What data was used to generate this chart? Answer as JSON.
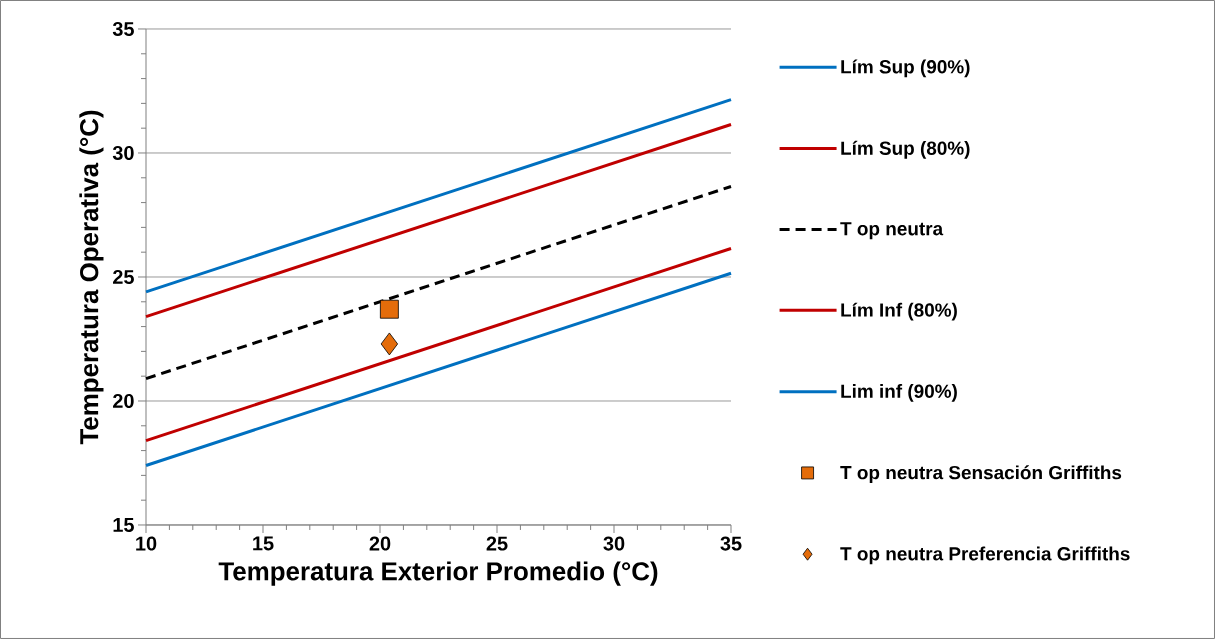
{
  "chart_data": {
    "type": "line",
    "xlabel": "Temperatura Exterior Promedio (°C)",
    "ylabel": "Temperatura Operativa (°C)",
    "xlim": [
      10,
      35
    ],
    "xticks": [
      10,
      15,
      20,
      25,
      30,
      35
    ],
    "ylim": [
      15,
      35
    ],
    "yticks": [
      15,
      20,
      25,
      30,
      35
    ],
    "grid": "y",
    "legend": "right",
    "series": [
      {
        "name": "Lím Sup (90%)",
        "color": "#0070c0",
        "x": [
          10,
          35
        ],
        "values": [
          24.4,
          32.15
        ],
        "line_style": "solid",
        "marker": "none"
      },
      {
        "name": "Lím Sup (80%)",
        "color": "#c00000",
        "x": [
          10,
          35
        ],
        "values": [
          23.4,
          31.15
        ],
        "line_style": "solid",
        "marker": "none"
      },
      {
        "name": "T op neutra",
        "color": "#000000",
        "x": [
          10,
          35
        ],
        "values": [
          20.9,
          28.65
        ],
        "line_style": "dashed",
        "marker": "none"
      },
      {
        "name": "Lím Inf (80%)",
        "color": "#c00000",
        "x": [
          10,
          35
        ],
        "values": [
          18.4,
          26.15
        ],
        "line_style": "solid",
        "marker": "none"
      },
      {
        "name": "Lim inf (90%)",
        "color": "#0070c0",
        "x": [
          10,
          35
        ],
        "values": [
          17.4,
          25.15
        ],
        "line_style": "solid",
        "marker": "none"
      },
      {
        "name": "T op neutra Sensación Griffiths",
        "type": "scatter",
        "color": "#e46c0a",
        "x": [
          20.4
        ],
        "values": [
          23.7
        ],
        "marker": "square"
      },
      {
        "name": "T op neutra Preferencia Griffiths",
        "type": "scatter",
        "color": "#e46c0a",
        "x": [
          20.4
        ],
        "values": [
          22.3
        ],
        "marker": "diamond"
      }
    ]
  }
}
